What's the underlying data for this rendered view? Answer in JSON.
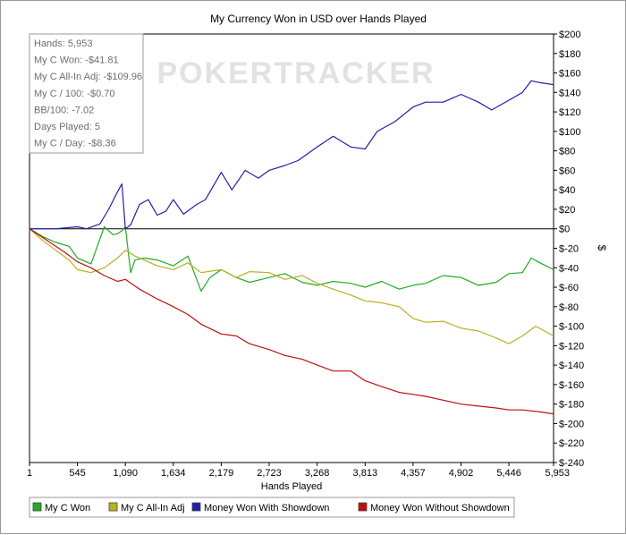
{
  "chart_data": {
    "type": "line",
    "title": "My Currency Won in USD over Hands Played",
    "xlabel": "Hands Played",
    "ylabel": "$",
    "xlim": [
      1,
      5953
    ],
    "ylim": [
      -240,
      200
    ],
    "x_ticks": [
      1,
      545,
      1090,
      1634,
      2179,
      2723,
      3268,
      3813,
      4357,
      4902,
      5446,
      5953
    ],
    "x_tick_labels": [
      "1",
      "545",
      "1,090",
      "1,634",
      "2,179",
      "2,723",
      "3,268",
      "3,813",
      "4,357",
      "4,902",
      "5,446",
      "5,953"
    ],
    "y_ticks": [
      200,
      180,
      160,
      140,
      120,
      100,
      80,
      60,
      40,
      20,
      0,
      -20,
      -40,
      -60,
      -80,
      -100,
      -120,
      -140,
      -160,
      -180,
      -200,
      -220,
      -240
    ],
    "y_tick_labels": [
      "$200",
      "$180",
      "$160",
      "$140",
      "$120",
      "$100",
      "$80",
      "$60",
      "$40",
      "$20",
      "$0",
      "$-20",
      "$-40",
      "$-60",
      "$-80",
      "$-100",
      "$-120",
      "$-140",
      "$-160",
      "$-180",
      "$-200",
      "$-220",
      "$-240"
    ],
    "grid": false,
    "legend_position": "bottom",
    "watermark": "POKERTRACKER",
    "stats_box": [
      "Hands: 5,953",
      "My C Won: -$41.81",
      "My C All-In Adj: -$109.96",
      "My C / 100: -$0.70",
      "BB/100: -7.02",
      "Days Played: 5",
      "My C / Day: -$8.36"
    ],
    "series": [
      {
        "name": "My C Won",
        "color": "#22aa22",
        "x": [
          1,
          150,
          300,
          450,
          545,
          700,
          850,
          950,
          1000,
          1050,
          1090,
          1150,
          1200,
          1300,
          1450,
          1634,
          1800,
          1950,
          2050,
          2179,
          2350,
          2500,
          2723,
          2900,
          3100,
          3268,
          3450,
          3650,
          3813,
          4000,
          4200,
          4357,
          4500,
          4700,
          4902,
          5100,
          5300,
          5446,
          5600,
          5700,
          5800,
          5953
        ],
        "y": [
          0,
          -8,
          -14,
          -18,
          -30,
          -36,
          2,
          -6,
          -5,
          -2,
          2,
          -45,
          -32,
          -30,
          -32,
          -38,
          -28,
          -64,
          -50,
          -42,
          -50,
          -55,
          -50,
          -46,
          -55,
          -58,
          -54,
          -56,
          -60,
          -54,
          -62,
          -58,
          -56,
          -48,
          -50,
          -58,
          -55,
          -46,
          -45,
          -30,
          -35,
          -42
        ]
      },
      {
        "name": "My C All-In Adj",
        "color": "#b8b020",
        "x": [
          1,
          150,
          300,
          450,
          545,
          700,
          850,
          1000,
          1090,
          1200,
          1300,
          1450,
          1634,
          1800,
          1950,
          2179,
          2350,
          2500,
          2723,
          2900,
          3100,
          3268,
          3450,
          3650,
          3813,
          4000,
          4200,
          4357,
          4500,
          4700,
          4902,
          5100,
          5300,
          5446,
          5600,
          5750,
          5953
        ],
        "y": [
          0,
          -12,
          -22,
          -32,
          -42,
          -45,
          -40,
          -30,
          -22,
          -28,
          -32,
          -38,
          -42,
          -35,
          -45,
          -42,
          -50,
          -44,
          -45,
          -52,
          -48,
          -56,
          -62,
          -68,
          -74,
          -76,
          -80,
          -92,
          -96,
          -95,
          -102,
          -105,
          -112,
          -118,
          -110,
          -100,
          -110
        ]
      },
      {
        "name": "Money Won With Showdown",
        "color": "#2020aa",
        "x": [
          1,
          300,
          545,
          650,
          800,
          900,
          1000,
          1050,
          1090,
          1150,
          1250,
          1350,
          1450,
          1550,
          1634,
          1750,
          1900,
          2000,
          2179,
          2300,
          2450,
          2600,
          2723,
          2900,
          3050,
          3268,
          3450,
          3650,
          3813,
          3950,
          4150,
          4357,
          4500,
          4700,
          4902,
          5100,
          5250,
          5446,
          5600,
          5700,
          5800,
          5953
        ],
        "y": [
          0,
          0,
          2,
          0,
          5,
          20,
          38,
          46,
          0,
          4,
          25,
          30,
          14,
          18,
          30,
          15,
          25,
          30,
          58,
          40,
          60,
          52,
          60,
          65,
          70,
          84,
          95,
          84,
          82,
          100,
          110,
          125,
          130,
          130,
          138,
          130,
          122,
          132,
          140,
          152,
          150,
          148
        ]
      },
      {
        "name": "Money Won Without Showdown",
        "color": "#bb1111",
        "x": [
          1,
          200,
          400,
          545,
          700,
          850,
          1000,
          1090,
          1250,
          1450,
          1634,
          1800,
          1950,
          2179,
          2350,
          2500,
          2723,
          2900,
          3100,
          3268,
          3450,
          3650,
          3813,
          4000,
          4200,
          4357,
          4500,
          4700,
          4902,
          5100,
          5300,
          5446,
          5600,
          5800,
          5953
        ],
        "y": [
          0,
          -12,
          -24,
          -34,
          -40,
          -48,
          -54,
          -52,
          -62,
          -72,
          -80,
          -88,
          -98,
          -108,
          -110,
          -118,
          -124,
          -130,
          -134,
          -140,
          -146,
          -146,
          -156,
          -162,
          -168,
          -170,
          -172,
          -176,
          -180,
          -182,
          -184,
          -186,
          -186,
          -188,
          -190
        ]
      }
    ]
  }
}
